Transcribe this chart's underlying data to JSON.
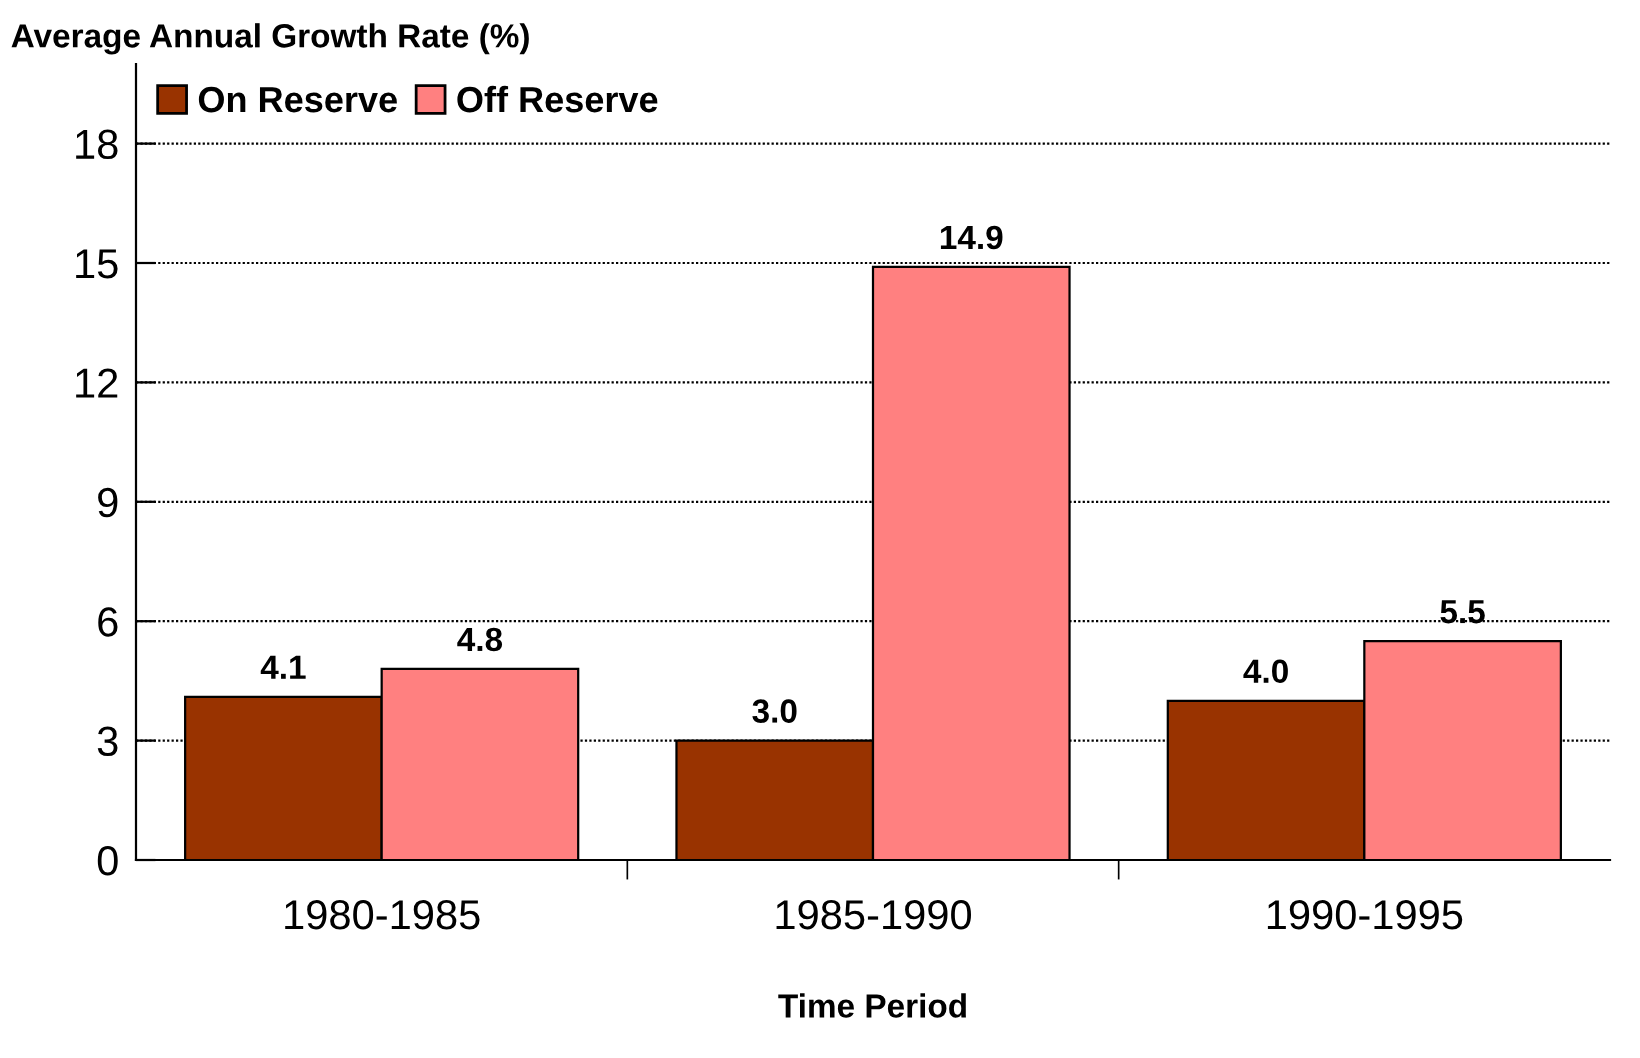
{
  "chart_data": {
    "type": "bar",
    "title": "Average Annual Growth Rate (%)",
    "xlabel": "Time Period",
    "categories": [
      "1980-1985",
      "1985-1990",
      "1990-1995"
    ],
    "series": [
      {
        "name": "On Reserve",
        "color": "#993300",
        "values": [
          4.1,
          3,
          4
        ],
        "value_labels": [
          "4.1",
          "3.0",
          "4.0"
        ]
      },
      {
        "name": "Off Reserve",
        "color": "#ff8080",
        "values": [
          4.8,
          14.9,
          5.5
        ],
        "value_labels": [
          "4.8",
          "14.9",
          "5.5"
        ]
      }
    ],
    "ylim": [
      0,
      20
    ],
    "yticks": [
      0,
      3,
      6,
      9,
      12,
      15,
      18
    ],
    "grid": "y",
    "legend": "top left"
  }
}
